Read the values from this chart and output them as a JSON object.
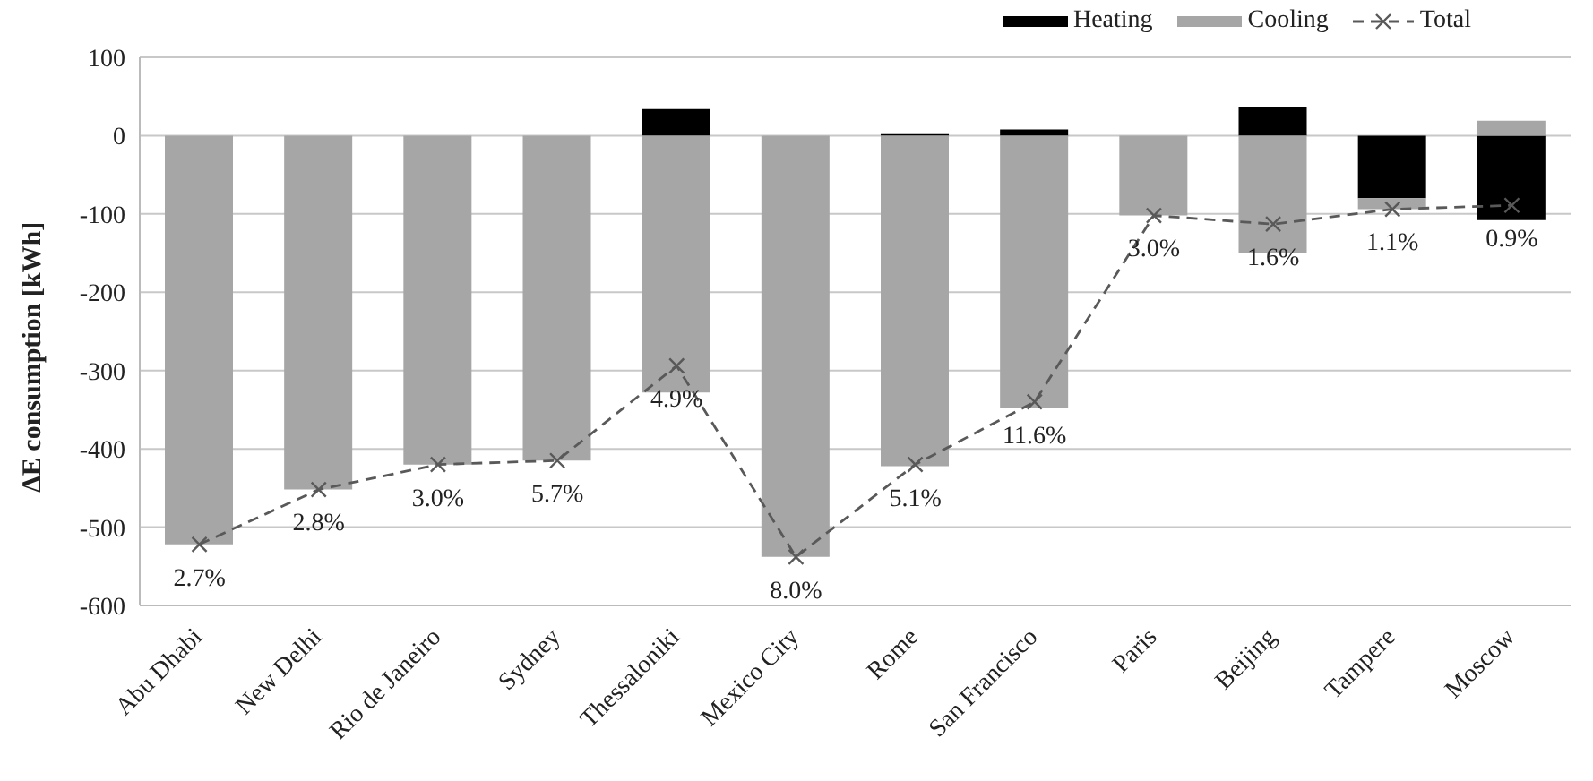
{
  "chart_data": {
    "type": "bar",
    "ylabel": "ΔE consumption [kWh]",
    "categories": [
      "Abu Dhabi",
      "New Delhi",
      "Rio de Janeiro",
      "Sydney",
      "Thessaloniki",
      "Mexico City",
      "Rome",
      "San Francisco",
      "Paris",
      "Beijing",
      "Tampere",
      "Moscow"
    ],
    "stacked": true,
    "series": [
      {
        "name": "Heating",
        "color": "#000000",
        "values": [
          0,
          0,
          0,
          0,
          34,
          0,
          2,
          8,
          0,
          37,
          -80,
          -108
        ]
      },
      {
        "name": "Cooling",
        "color": "#a6a6a6",
        "values": [
          -522,
          -452,
          -420,
          -415,
          -328,
          -538,
          -422,
          -348,
          -102,
          -150,
          -14,
          19
        ]
      },
      {
        "name": "Total",
        "type": "line",
        "color": "#595959",
        "marker": "cross",
        "line_style": "dashed",
        "values": [
          -522,
          -452,
          -420,
          -415,
          -294,
          -538,
          -420,
          -340,
          -102,
          -113,
          -94,
          -89
        ]
      }
    ],
    "ylim": [
      -600,
      100
    ],
    "yticks": [
      -600,
      -500,
      -400,
      -300,
      -200,
      -100,
      0,
      100
    ],
    "grid": "y",
    "legend": "top right",
    "annotations": [
      {
        "text": "2.7%",
        "x": "Abu Dhabi",
        "y": -522
      },
      {
        "text": "2.8%",
        "x": "New Delhi",
        "y": -452
      },
      {
        "text": "3.0%",
        "x": "Rio de Janeiro",
        "y": -420
      },
      {
        "text": "5.7%",
        "x": "Sydney",
        "y": -415
      },
      {
        "text": "4.9%",
        "x": "Thessaloniki",
        "y": -294
      },
      {
        "text": "8.0%",
        "x": "Mexico City",
        "y": -538
      },
      {
        "text": "5.1%",
        "x": "Rome",
        "y": -420
      },
      {
        "text": "11.6%",
        "x": "San Francisco",
        "y": -340
      },
      {
        "text": "3.0%",
        "x": "Paris",
        "y": -102
      },
      {
        "text": "1.6%",
        "x": "Beijing",
        "y": -113
      },
      {
        "text": "1.1%",
        "x": "Tampere",
        "y": -94
      },
      {
        "text": "0.9%",
        "x": "Moscow",
        "y": -89
      }
    ]
  }
}
